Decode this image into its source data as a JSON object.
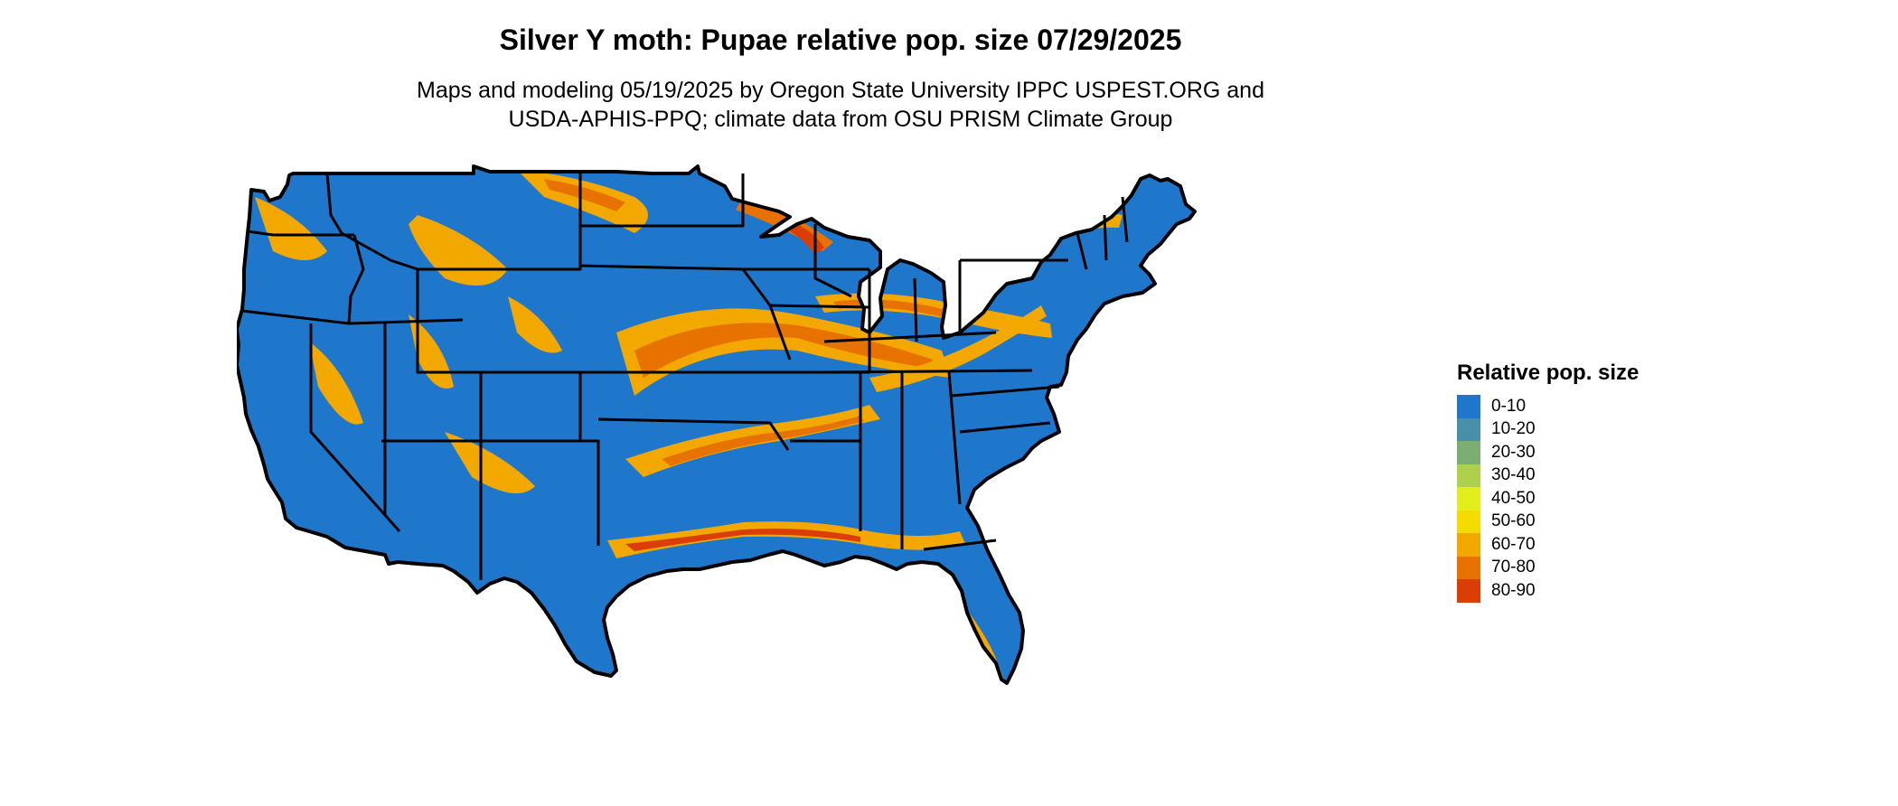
{
  "title": "Silver Y moth: Pupae relative pop. size 07/29/2025",
  "subtitle": {
    "line1": "Maps and modeling 05/19/2025 by Oregon State University IPPC USPEST.ORG and",
    "line2": "USDA-APHIS-PPQ; climate data from OSU PRISM Climate Group"
  },
  "legend": {
    "title": "Relative pop. size",
    "items": [
      {
        "label": "0-10",
        "color": "#1f77cc"
      },
      {
        "label": "10-20",
        "color": "#4a8faa"
      },
      {
        "label": "20-30",
        "color": "#7cae74"
      },
      {
        "label": "30-40",
        "color": "#afd04a"
      },
      {
        "label": "40-50",
        "color": "#e2ee1c"
      },
      {
        "label": "50-60",
        "color": "#f5dc00"
      },
      {
        "label": "60-70",
        "color": "#f3a800"
      },
      {
        "label": "70-80",
        "color": "#e87200"
      },
      {
        "label": "80-90",
        "color": "#da3e04"
      }
    ]
  },
  "map": {
    "region": "contiguous-us",
    "base_color": "#1f77cc",
    "border_color": "#000000"
  }
}
